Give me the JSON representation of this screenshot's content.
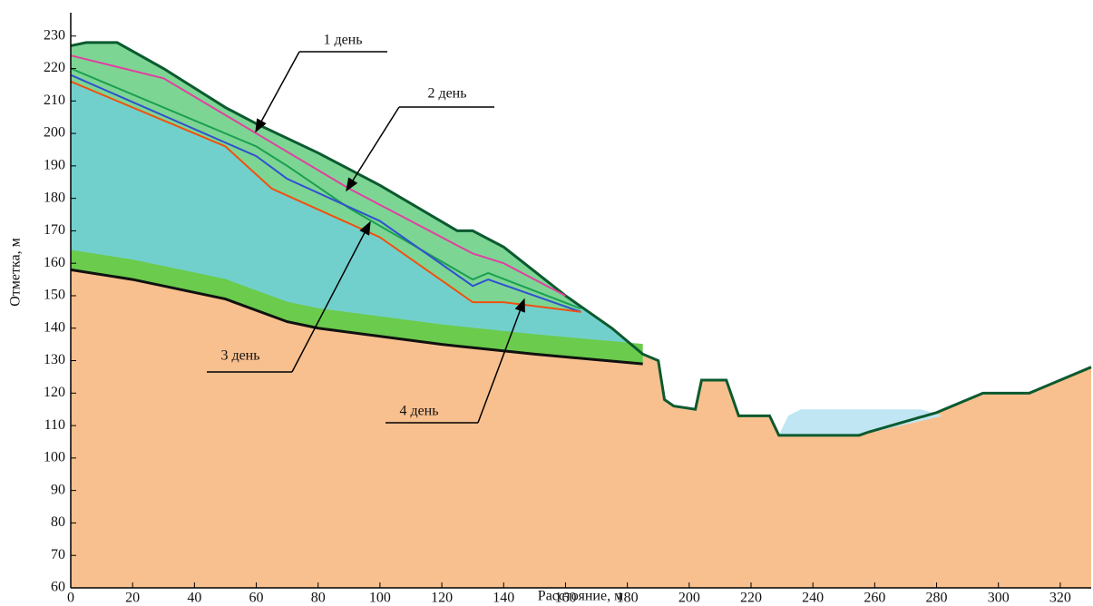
{
  "chart_data": {
    "type": "profile",
    "xlabel": "Расстояние, м",
    "ylabel": "Отметка, м",
    "xlim": [
      0,
      330
    ],
    "ylim": [
      60,
      233
    ],
    "xticks": [
      0,
      20,
      40,
      60,
      80,
      100,
      120,
      140,
      160,
      180,
      200,
      220,
      240,
      260,
      280,
      300,
      320
    ],
    "yticks": [
      60,
      70,
      80,
      90,
      100,
      110,
      120,
      130,
      140,
      150,
      160,
      170,
      180,
      190,
      200,
      210,
      220,
      230
    ],
    "series": [
      {
        "color": "#0b5a2f",
        "x": [
          0,
          5,
          15,
          30,
          50,
          60,
          80,
          100,
          125,
          130,
          140,
          160,
          175,
          185,
          190,
          192,
          195,
          202,
          204,
          212,
          216,
          226,
          229,
          255,
          258,
          280,
          295,
          310,
          330
        ],
        "values": [
          227,
          228,
          228,
          220,
          208,
          203,
          194,
          184,
          170,
          170,
          165,
          150,
          140,
          132,
          130,
          118,
          116,
          115,
          124,
          124,
          113,
          113,
          107,
          107,
          108,
          114,
          120,
          120,
          128
        ]
      },
      {
        "color": "#111111",
        "x": [
          0,
          20,
          50,
          70,
          80,
          120,
          150,
          185
        ],
        "values": [
          158,
          155,
          149,
          142,
          140,
          135,
          132,
          129
        ]
      },
      {
        "color": "#e040a0",
        "x": [
          0,
          30,
          60,
          90,
          130,
          140,
          160
        ],
        "values": [
          224,
          217,
          200,
          183,
          163,
          160,
          150
        ]
      },
      {
        "color": "#1aa050",
        "x": [
          0,
          60,
          70,
          90,
          130,
          135,
          165
        ],
        "values": [
          220,
          196,
          190,
          177,
          155,
          157,
          146
        ]
      },
      {
        "color": "#3050d0",
        "x": [
          0,
          60,
          70,
          100,
          130,
          135,
          165
        ],
        "values": [
          218,
          193,
          186,
          173,
          153,
          155,
          145
        ]
      },
      {
        "color": "#f05010",
        "x": [
          0,
          50,
          65,
          100,
          130,
          140,
          165
        ],
        "values": [
          216,
          196,
          183,
          168,
          148,
          148,
          145
        ]
      }
    ],
    "annotations": [
      "1 день",
      "2 день",
      "3 день",
      "4 день"
    ]
  }
}
